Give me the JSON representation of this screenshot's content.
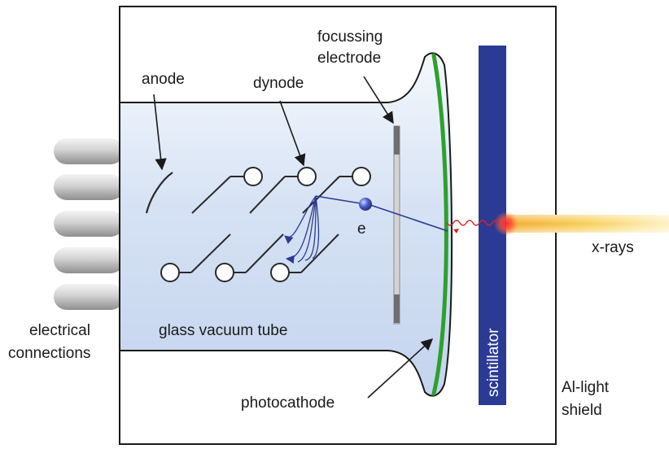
{
  "labels": {
    "focussing_line1": "focussing",
    "focussing_line2": "electrode",
    "anode": "anode",
    "dynode": "dynode",
    "electron": "e",
    "xrays": "x-rays",
    "electrical_line1": "electrical",
    "electrical_line2": "connections",
    "glass_tube": "glass vacuum tube",
    "scintillator": "scintillator",
    "shield_line1": "Al-light",
    "shield_line2": "shield",
    "photocathode": "photocathode"
  },
  "colors": {
    "tube_fill": "#dbe6f6",
    "photocathode": "#2ea02e",
    "scintillator": "#2b3a94",
    "electron_path": "#2b3a94",
    "xray_beam": "#f7c238",
    "flash": "#ff2020",
    "pins": "#b5b5b5"
  }
}
